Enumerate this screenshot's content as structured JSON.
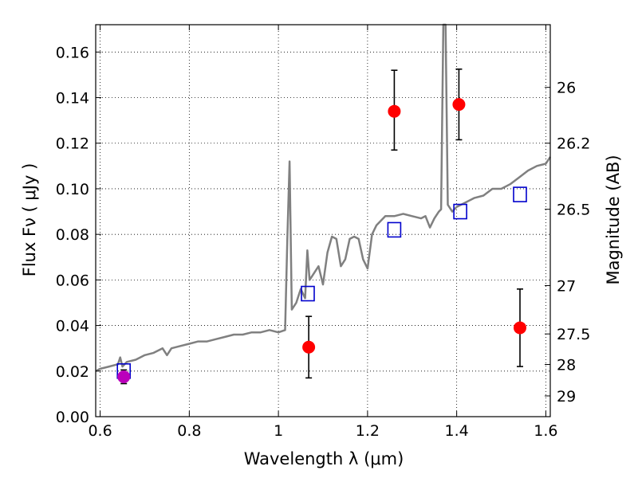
{
  "chart_data": {
    "type": "scatter",
    "xlabel": "Wavelength  λ (μm)",
    "ylabel": "Flux  Fν  ( μJy )",
    "ylabel_right": "Magnitude (AB)",
    "xlim": [
      0.59,
      1.61
    ],
    "ylim": [
      0.0,
      0.172
    ],
    "grid": true,
    "x_ticks": [
      0.6,
      0.8,
      1.0,
      1.2,
      1.4,
      1.6
    ],
    "x_tick_labels": [
      "0.6",
      "0.8",
      "1",
      "1.2",
      "1.4",
      "1.6"
    ],
    "y_ticks": [
      0.0,
      0.02,
      0.04,
      0.06,
      0.08,
      0.1,
      0.12,
      0.14,
      0.16
    ],
    "y_tick_labels": [
      "0.00",
      "0.02",
      "0.04",
      "0.06",
      "0.08",
      "0.10",
      "0.12",
      "0.14",
      "0.16"
    ],
    "right_axis_ticks": [
      {
        "label": "26",
        "flux": 0.1445
      },
      {
        "label": "26.2",
        "flux": 0.12
      },
      {
        "label": "26.5",
        "flux": 0.091
      },
      {
        "label": "27",
        "flux": 0.0575
      },
      {
        "label": "27.5",
        "flux": 0.0363
      },
      {
        "label": "28",
        "flux": 0.0229
      },
      {
        "label": "29",
        "flux": 0.0091
      }
    ],
    "series": [
      {
        "kind": "line",
        "color": "#808080",
        "x": [
          0.59,
          0.6,
          0.62,
          0.64,
          0.645,
          0.65,
          0.66,
          0.68,
          0.7,
          0.72,
          0.74,
          0.75,
          0.76,
          0.78,
          0.8,
          0.82,
          0.84,
          0.86,
          0.88,
          0.9,
          0.92,
          0.94,
          0.96,
          0.98,
          1.0,
          1.015,
          1.02,
          1.025,
          1.03,
          1.04,
          1.05,
          1.06,
          1.065,
          1.07,
          1.08,
          1.09,
          1.1,
          1.11,
          1.12,
          1.13,
          1.14,
          1.15,
          1.16,
          1.17,
          1.18,
          1.19,
          1.2,
          1.21,
          1.22,
          1.24,
          1.26,
          1.28,
          1.3,
          1.32,
          1.33,
          1.34,
          1.35,
          1.36,
          1.365,
          1.37,
          1.375,
          1.38,
          1.39,
          1.4,
          1.42,
          1.44,
          1.46,
          1.48,
          1.5,
          1.52,
          1.54,
          1.56,
          1.58,
          1.6,
          1.61
        ],
        "y": [
          0.02,
          0.021,
          0.022,
          0.023,
          0.026,
          0.022,
          0.024,
          0.025,
          0.027,
          0.028,
          0.03,
          0.027,
          0.03,
          0.031,
          0.032,
          0.033,
          0.033,
          0.034,
          0.035,
          0.036,
          0.036,
          0.037,
          0.037,
          0.038,
          0.037,
          0.038,
          0.078,
          0.112,
          0.047,
          0.05,
          0.056,
          0.052,
          0.073,
          0.06,
          0.063,
          0.066,
          0.058,
          0.072,
          0.079,
          0.078,
          0.066,
          0.069,
          0.078,
          0.079,
          0.078,
          0.069,
          0.065,
          0.08,
          0.084,
          0.088,
          0.088,
          0.089,
          0.088,
          0.087,
          0.088,
          0.083,
          0.087,
          0.09,
          0.091,
          0.18,
          0.18,
          0.093,
          0.09,
          0.092,
          0.094,
          0.096,
          0.097,
          0.1,
          0.1,
          0.102,
          0.105,
          0.108,
          0.11,
          0.111,
          0.114
        ]
      },
      {
        "kind": "squares",
        "color": "#0000cc",
        "x": [
          0.653,
          1.066,
          1.26,
          1.408,
          1.542
        ],
        "y": [
          0.02,
          0.054,
          0.082,
          0.09,
          0.0975
        ]
      },
      {
        "kind": "points_with_errors",
        "color": "#ff0000",
        "x": [
          1.068,
          1.26,
          1.405,
          1.542
        ],
        "y": [
          0.0305,
          0.134,
          0.137,
          0.039
        ],
        "yerr_low": [
          0.0135,
          0.017,
          0.0155,
          0.017
        ],
        "yerr_high": [
          0.0135,
          0.018,
          0.0155,
          0.017
        ]
      },
      {
        "kind": "points_with_errors",
        "color": "#bb00bb",
        "x": [
          0.653
        ],
        "y": [
          0.0175
        ],
        "yerr_low": [
          0.003
        ],
        "yerr_high": [
          0.003
        ]
      }
    ]
  }
}
